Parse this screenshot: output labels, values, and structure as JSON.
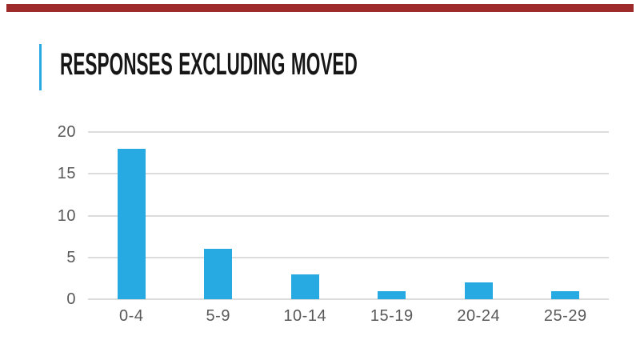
{
  "slide": {
    "title": "RESPONSES EXCLUDING MOVED"
  },
  "colors": {
    "background": "#FFFFFF",
    "top_bar": "#9E2B2B",
    "accent_line": "#29ABE2",
    "bar": "#27AAE1",
    "gridline": "#DCDCDC",
    "axis_text": "#595959",
    "title_text": "#161616"
  },
  "chart_data": {
    "type": "bar",
    "title": "RESPONSES EXCLUDING MOVED",
    "categories": [
      "0-4",
      "5-9",
      "10-14",
      "15-19",
      "20-24",
      "25-29"
    ],
    "values": [
      18,
      6,
      3,
      1,
      2,
      1
    ],
    "xlabel": "",
    "ylabel": "",
    "ylim": [
      0,
      20
    ],
    "yticks": [
      0,
      5,
      10,
      15,
      20
    ],
    "grid": true,
    "legend": false
  }
}
